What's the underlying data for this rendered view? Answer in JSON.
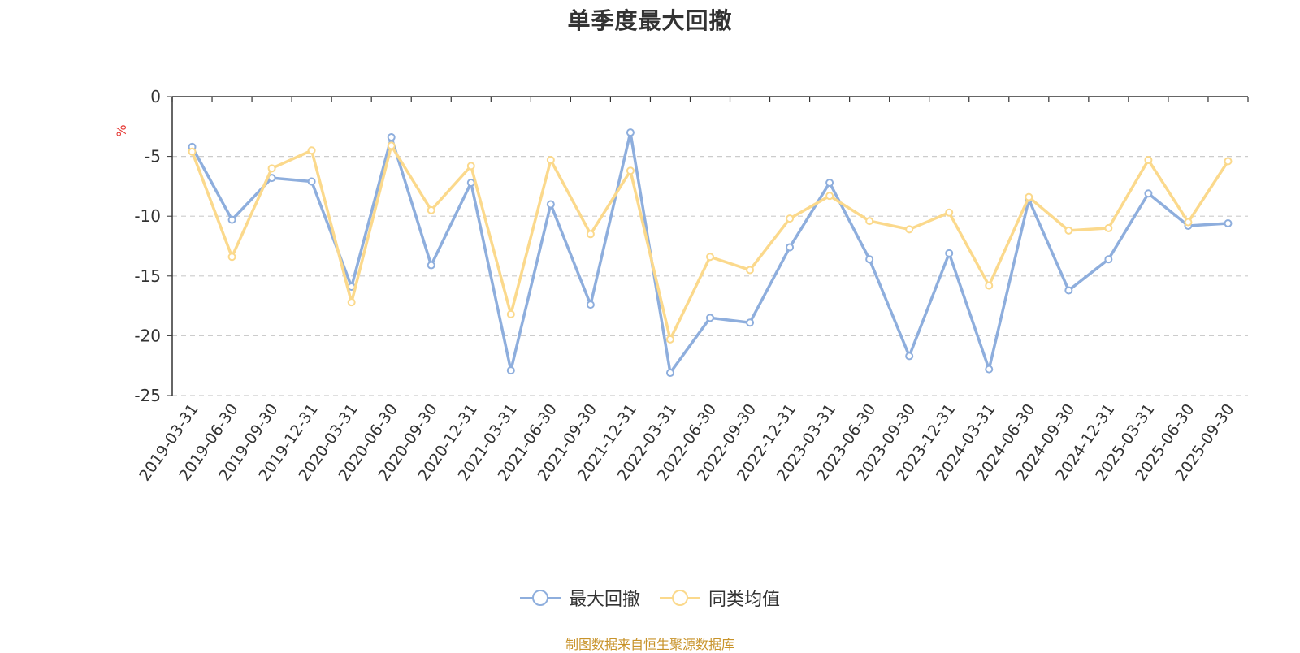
{
  "chart_data": {
    "type": "line",
    "title": "单季度最大回撤",
    "ylabel": "%",
    "ylim": [
      -25,
      0
    ],
    "yticks": [
      0,
      -5,
      -10,
      -15,
      -20,
      -25
    ],
    "grid": true,
    "legend_position": "bottom",
    "categories": [
      "2019-03-31",
      "2019-06-30",
      "2019-09-30",
      "2019-12-31",
      "2020-03-31",
      "2020-06-30",
      "2020-09-30",
      "2020-12-31",
      "2021-03-31",
      "2021-06-30",
      "2021-09-30",
      "2021-12-31",
      "2022-03-31",
      "2022-06-30",
      "2022-09-30",
      "2022-12-31",
      "2023-03-31",
      "2023-06-30",
      "2023-09-30",
      "2023-12-31",
      "2024-03-31",
      "2024-06-30",
      "2024-09-30",
      "2024-12-31",
      "2025-03-31",
      "2025-06-30",
      "2025-09-30"
    ],
    "series": [
      {
        "name": "最大回撤",
        "color": "#8eaedd",
        "values": [
          -4.2,
          -10.3,
          -6.8,
          -7.1,
          -15.9,
          -3.4,
          -14.1,
          -7.2,
          -22.9,
          -9.0,
          -17.4,
          -3.0,
          -23.1,
          -18.5,
          -18.9,
          -12.6,
          -7.2,
          -13.6,
          -21.7,
          -13.1,
          -22.8,
          -8.6,
          -16.2,
          -13.6,
          -8.1,
          -10.8,
          -10.6
        ]
      },
      {
        "name": "同类均值",
        "color": "#fbd98c",
        "values": [
          -4.6,
          -13.4,
          -6.0,
          -4.5,
          -17.2,
          -4.1,
          -9.5,
          -5.8,
          -18.2,
          -5.3,
          -11.5,
          -6.2,
          -20.3,
          -13.4,
          -14.5,
          -10.2,
          -8.3,
          -10.4,
          -11.1,
          -9.7,
          -15.8,
          -8.4,
          -11.2,
          -11.0,
          -5.3,
          -10.5,
          -5.4
        ]
      }
    ]
  },
  "source_note": "制图数据来自恒生聚源数据库",
  "colors": {
    "axis": "#333333",
    "grid": "#cccccc",
    "ylabel": "#e53935",
    "source": "#c8932a"
  }
}
